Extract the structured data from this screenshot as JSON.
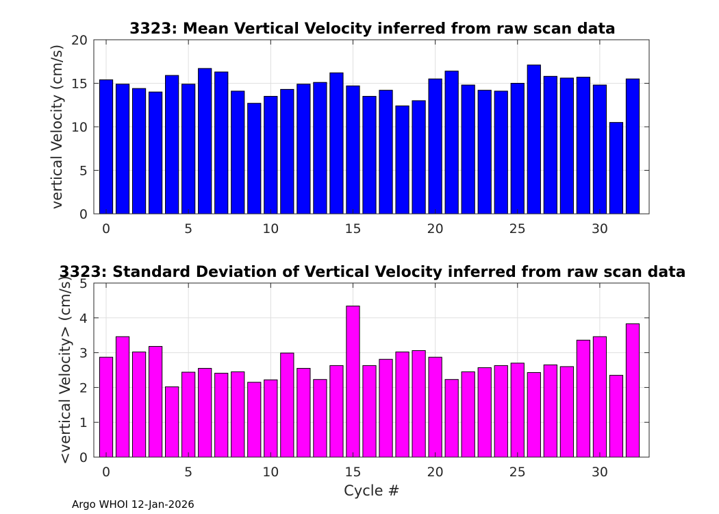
{
  "chart_data": [
    {
      "type": "bar",
      "title": "3323: Mean Vertical Velocity inferred from raw scan data",
      "xlabel": "",
      "ylabel": "vertical Velocity (cm/s)",
      "x": [
        0,
        1,
        2,
        3,
        4,
        5,
        6,
        7,
        8,
        9,
        10,
        11,
        12,
        13,
        14,
        15,
        16,
        17,
        18,
        19,
        20,
        21,
        22,
        23,
        24,
        25,
        26,
        27,
        28,
        29,
        30,
        31,
        32
      ],
      "values": [
        15.4,
        14.9,
        14.4,
        14.0,
        15.9,
        14.9,
        16.7,
        16.3,
        14.1,
        12.7,
        13.5,
        14.3,
        14.9,
        15.1,
        16.2,
        14.7,
        13.5,
        14.2,
        12.4,
        13.0,
        15.5,
        16.4,
        14.8,
        14.2,
        14.1,
        15.0,
        17.1,
        15.8,
        15.6,
        15.7,
        14.8,
        10.5,
        15.5
      ],
      "xlim": [
        -0.75,
        33.0
      ],
      "ylim": [
        0,
        20
      ],
      "xticks": [
        0,
        5,
        10,
        15,
        20,
        25,
        30
      ],
      "yticks": [
        0,
        5,
        10,
        15,
        20
      ],
      "grid": true,
      "color": "#0000ff"
    },
    {
      "type": "bar",
      "title": "3323: Standard Deviation of Vertical Velocity inferred from raw scan data",
      "xlabel": "Cycle #",
      "ylabel": "<vertical Velocity> (cm/s)",
      "x": [
        0,
        1,
        2,
        3,
        4,
        5,
        6,
        7,
        8,
        9,
        10,
        11,
        12,
        13,
        14,
        15,
        16,
        17,
        18,
        19,
        20,
        21,
        22,
        23,
        24,
        25,
        26,
        27,
        28,
        29,
        30,
        31,
        32
      ],
      "values": [
        2.87,
        3.46,
        3.02,
        3.18,
        2.02,
        2.44,
        2.55,
        2.41,
        2.45,
        2.15,
        2.22,
        2.99,
        2.55,
        2.23,
        2.63,
        4.34,
        2.63,
        2.81,
        3.02,
        3.06,
        2.87,
        2.23,
        2.45,
        2.57,
        2.63,
        2.7,
        2.43,
        2.65,
        2.6,
        3.36,
        3.46,
        2.35,
        3.83
      ],
      "xlim": [
        -0.75,
        33.0
      ],
      "ylim": [
        0,
        5
      ],
      "xticks": [
        0,
        5,
        10,
        15,
        20,
        25,
        30
      ],
      "yticks": [
        0,
        1,
        2,
        3,
        4,
        5
      ],
      "grid": true,
      "color": "#ff00ff"
    }
  ],
  "footer": "Argo WHOI 12-Jan-2026"
}
